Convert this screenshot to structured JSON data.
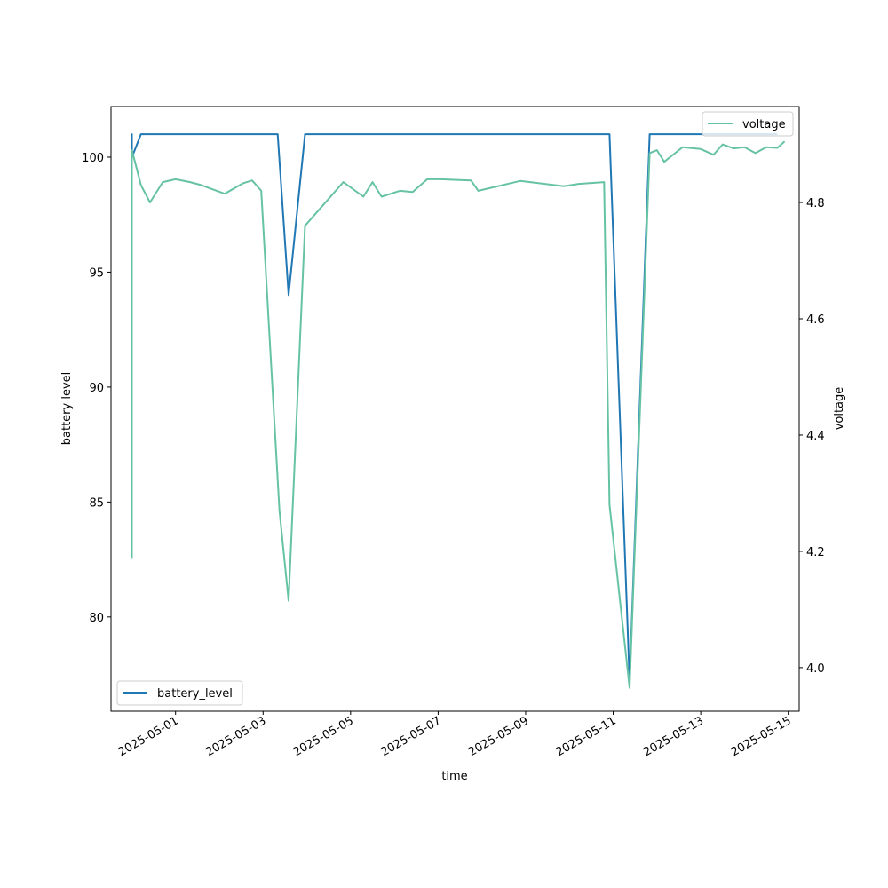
{
  "chart_data": {
    "type": "line",
    "xlabel": "time",
    "ylabel_left": "battery level",
    "ylabel_right": "voltage",
    "xlim": [
      "2025-04-29T12:36",
      "2025-05-15T06:00"
    ],
    "ylim_left": [
      75.9,
      102.2
    ],
    "ylim_right": [
      3.925,
      4.965
    ],
    "x_ticks": [
      "2025-05-01",
      "2025-05-03",
      "2025-05-05",
      "2025-05-07",
      "2025-05-09",
      "2025-05-11",
      "2025-05-13",
      "2025-05-15"
    ],
    "y_ticks_left": [
      80,
      85,
      90,
      95,
      100
    ],
    "y_ticks_right": [
      4.0,
      4.2,
      4.4,
      4.6,
      4.8
    ],
    "legend_left": "lower-left",
    "legend_right": "upper-right",
    "grid": false,
    "series": [
      {
        "name": "battery_level",
        "axis": "left",
        "color": "#1f77b4",
        "x": [
          "2025-04-30T00:00",
          "2025-04-30T00:02",
          "2025-04-30T00:04",
          "2025-04-30T00:06",
          "2025-04-30T05:00",
          "2025-05-03T08:00",
          "2025-05-03T14:00",
          "2025-05-03T23:00",
          "2025-05-10T22:00",
          "2025-05-11T09:00",
          "2025-05-11T20:00",
          "2025-05-14T18:00"
        ],
        "y": [
          101,
          97.3,
          101,
          100,
          101,
          101,
          94,
          101,
          101,
          77.2,
          101,
          101
        ]
      },
      {
        "name": "voltage",
        "axis": "right",
        "color": "#66c2a5",
        "x": [
          "2025-04-30T00:00",
          "2025-04-30T00:02",
          "2025-04-30T00:04",
          "2025-04-30T00:06",
          "2025-04-30T05:00",
          "2025-04-30T10:00",
          "2025-04-30T17:00",
          "2025-05-01T00:00",
          "2025-05-01T08:00",
          "2025-05-01T14:00",
          "2025-05-02T03:00",
          "2025-05-02T13:00",
          "2025-05-02T18:00",
          "2025-05-02T23:00",
          "2025-05-03T09:00",
          "2025-05-03T14:00",
          "2025-05-03T23:00",
          "2025-05-04T20:00",
          "2025-05-05T07:00",
          "2025-05-05T12:00",
          "2025-05-05T17:00",
          "2025-05-06T03:00",
          "2025-05-06T10:00",
          "2025-05-06T18:00",
          "2025-05-07T01:00",
          "2025-05-07T18:00",
          "2025-05-07T22:00",
          "2025-05-08T21:00",
          "2025-05-09T21:00",
          "2025-05-10T05:00",
          "2025-05-10T19:00",
          "2025-05-10T22:00",
          "2025-05-11T09:00",
          "2025-05-11T20:00",
          "2025-05-12T00:00",
          "2025-05-12T04:00",
          "2025-05-12T14:00",
          "2025-05-13T00:00",
          "2025-05-13T07:00",
          "2025-05-13T12:00",
          "2025-05-13T18:00",
          "2025-05-14T00:00",
          "2025-05-14T06:00",
          "2025-05-14T12:00",
          "2025-05-14T18:00",
          "2025-05-14T22:00"
        ],
        "y": [
          4.78,
          4.19,
          4.88,
          4.89,
          4.83,
          4.8,
          4.835,
          4.84,
          4.835,
          4.83,
          4.815,
          4.833,
          4.838,
          4.82,
          4.27,
          4.115,
          4.76,
          4.835,
          4.81,
          4.835,
          4.81,
          4.82,
          4.818,
          4.84,
          4.84,
          4.838,
          4.82,
          4.837,
          4.828,
          4.832,
          4.835,
          4.28,
          3.965,
          4.885,
          4.89,
          4.87,
          4.895,
          4.892,
          4.882,
          4.9,
          4.893,
          4.895,
          4.885,
          4.895,
          4.894,
          4.905
        ]
      }
    ]
  }
}
